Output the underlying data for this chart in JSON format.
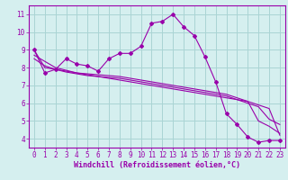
{
  "x": [
    0,
    1,
    2,
    3,
    4,
    5,
    6,
    7,
    8,
    9,
    10,
    11,
    12,
    13,
    14,
    15,
    16,
    17,
    18,
    19,
    20,
    21,
    22,
    23
  ],
  "y_main": [
    9.0,
    7.7,
    7.9,
    8.5,
    8.2,
    8.1,
    7.8,
    8.5,
    8.8,
    8.8,
    9.2,
    10.5,
    10.6,
    11.0,
    10.3,
    9.8,
    8.6,
    7.2,
    5.4,
    4.8,
    4.1,
    3.8,
    3.9,
    3.9
  ],
  "y_line1": [
    9.0,
    8.0,
    7.9,
    7.8,
    7.7,
    7.6,
    7.5,
    7.4,
    7.3,
    7.2,
    7.1,
    7.0,
    6.9,
    6.8,
    6.7,
    6.6,
    6.5,
    6.4,
    6.3,
    6.2,
    6.1,
    5.0,
    4.7,
    4.3
  ],
  "y_line2": [
    8.7,
    8.35,
    8.0,
    7.85,
    7.7,
    7.65,
    7.6,
    7.55,
    7.5,
    7.4,
    7.3,
    7.2,
    7.1,
    7.0,
    6.9,
    6.8,
    6.7,
    6.6,
    6.5,
    6.3,
    6.1,
    5.9,
    5.7,
    4.2
  ],
  "y_line3": [
    8.5,
    8.1,
    7.9,
    7.75,
    7.65,
    7.55,
    7.5,
    7.45,
    7.4,
    7.3,
    7.2,
    7.1,
    7.0,
    6.9,
    6.8,
    6.7,
    6.6,
    6.5,
    6.4,
    6.2,
    6.0,
    5.8,
    5.1,
    4.8
  ],
  "line_color": "#9900aa",
  "bg_color": "#d5efef",
  "grid_color": "#aad4d4",
  "xlabel": "Windchill (Refroidissement éolien,°C)",
  "ylim": [
    3.5,
    11.5
  ],
  "xlim": [
    -0.5,
    23.5
  ],
  "yticks": [
    4,
    5,
    6,
    7,
    8,
    9,
    10,
    11
  ],
  "xticks": [
    0,
    1,
    2,
    3,
    4,
    5,
    6,
    7,
    8,
    9,
    10,
    11,
    12,
    13,
    14,
    15,
    16,
    17,
    18,
    19,
    20,
    21,
    22,
    23
  ],
  "tick_fontsize": 5.5,
  "xlabel_fontsize": 6.0
}
